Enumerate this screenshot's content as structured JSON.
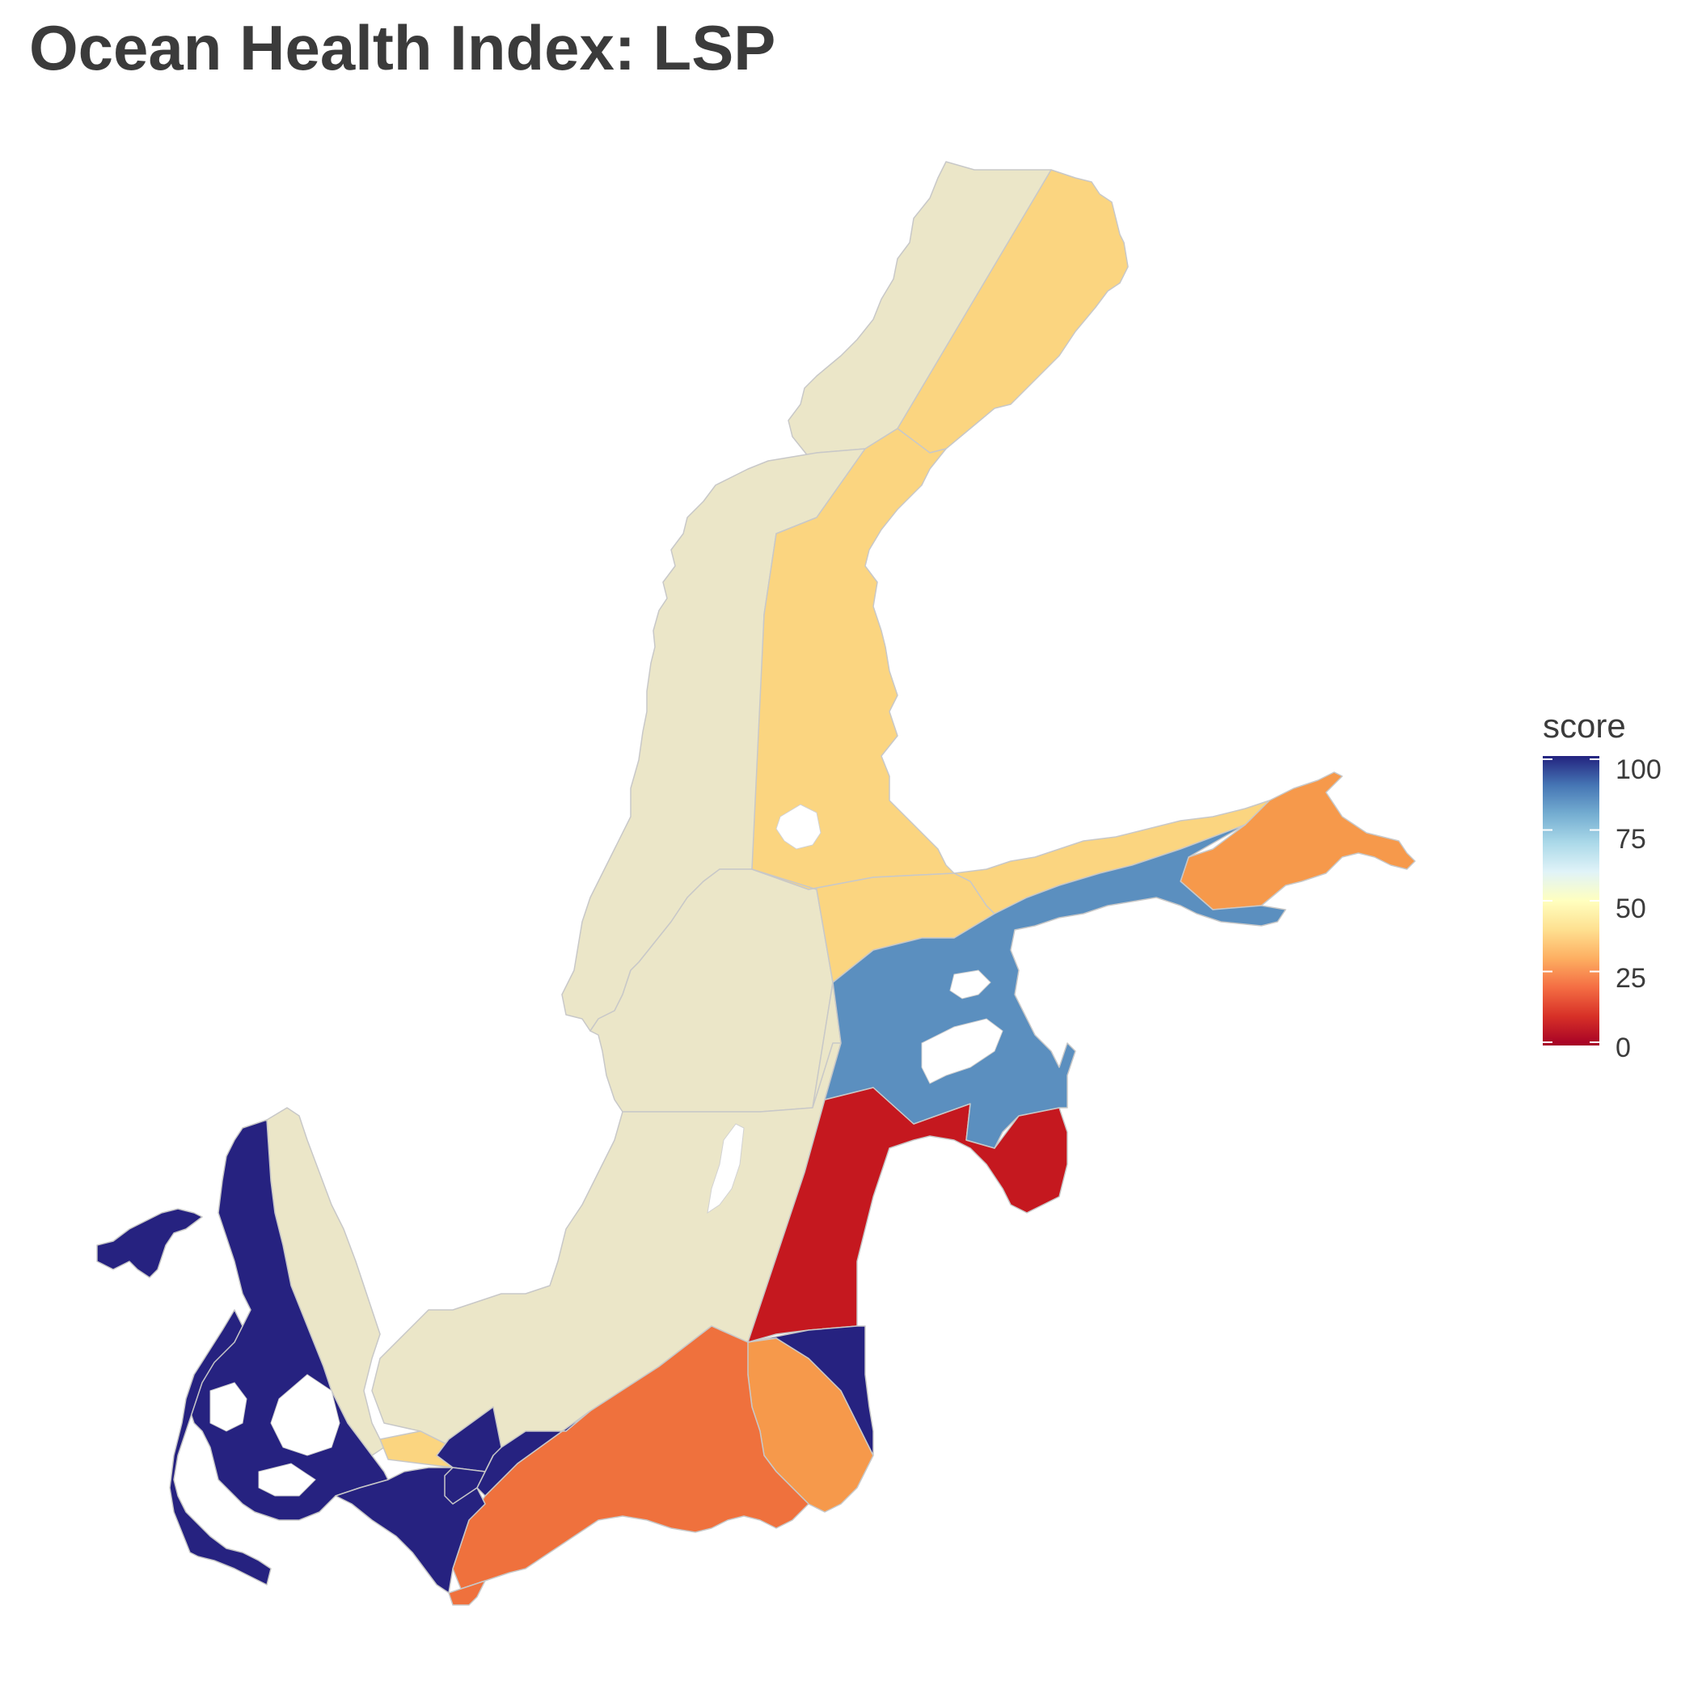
{
  "title": "Ocean Health Index: LSP",
  "legend": {
    "title": "score",
    "ticks": [
      "100",
      "75",
      "50",
      "25",
      "0"
    ],
    "gradient": [
      "#a50026",
      "#d73027",
      "#f46d43",
      "#fdae61",
      "#fee090",
      "#ffffbf",
      "#e0f3f8",
      "#abd9e9",
      "#74add1",
      "#4575b4",
      "#23237f"
    ]
  },
  "map_colors": {
    "no_data": "#ebe6c8",
    "coast_outline": "#c4c4c4",
    "score_100": "#262280",
    "score_78": "#5b8fbf",
    "score_45": "#fbd580",
    "score_35": "#f6994b",
    "score_28": "#ef713d",
    "score_10": "#c5181f"
  }
}
